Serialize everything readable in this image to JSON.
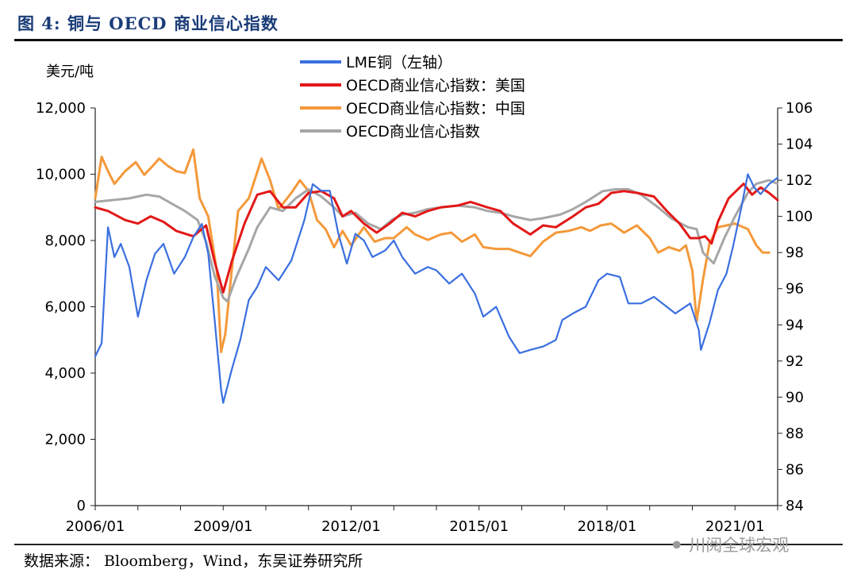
{
  "figure": {
    "title": "图 4:    铜与 OECD 商业信心指数",
    "source": "数据来源： Bloomberg，Wind，东吴证券研究所",
    "watermark": "川阅全球宏观"
  },
  "chart_data": {
    "type": "line",
    "title": "铜与 OECD 商业信心指数",
    "ylabel_left": "美元/吨",
    "x_tick_labels": [
      "2006/01",
      "2009/01",
      "2012/01",
      "2015/01",
      "2018/01",
      "2021/01"
    ],
    "x_range": [
      2006.0,
      2022.0
    ],
    "y_left": {
      "range": [
        0,
        12000
      ],
      "ticks": [
        0,
        2000,
        4000,
        6000,
        8000,
        10000,
        12000
      ],
      "tick_labels": [
        "0",
        "2,000",
        "4,000",
        "6,000",
        "8,000",
        "10,000",
        "12,000"
      ]
    },
    "y_right": {
      "range": [
        84,
        106
      ],
      "ticks": [
        84,
        86,
        88,
        90,
        92,
        94,
        96,
        98,
        100,
        102,
        104,
        106
      ],
      "tick_labels": [
        "84",
        "86",
        "88",
        "90",
        "92",
        "94",
        "96",
        "98",
        "100",
        "102",
        "104",
        "106"
      ]
    },
    "legend_position": "top-center",
    "series": [
      {
        "name": "LME铜（左轴）",
        "axis": "left",
        "color": "#3a6fe0",
        "points": [
          [
            2006.0,
            4500
          ],
          [
            2006.15,
            4900
          ],
          [
            2006.3,
            8400
          ],
          [
            2006.45,
            7500
          ],
          [
            2006.6,
            7900
          ],
          [
            2006.8,
            7200
          ],
          [
            2007.0,
            5700
          ],
          [
            2007.2,
            6800
          ],
          [
            2007.4,
            7600
          ],
          [
            2007.6,
            7900
          ],
          [
            2007.85,
            7000
          ],
          [
            2008.1,
            7500
          ],
          [
            2008.3,
            8100
          ],
          [
            2008.5,
            8500
          ],
          [
            2008.65,
            7600
          ],
          [
            2008.8,
            5600
          ],
          [
            2008.95,
            3500
          ],
          [
            2009.0,
            3100
          ],
          [
            2009.2,
            4100
          ],
          [
            2009.4,
            5000
          ],
          [
            2009.6,
            6200
          ],
          [
            2009.8,
            6600
          ],
          [
            2010.0,
            7200
          ],
          [
            2010.3,
            6800
          ],
          [
            2010.6,
            7400
          ],
          [
            2010.9,
            8600
          ],
          [
            2011.1,
            9700
          ],
          [
            2011.3,
            9500
          ],
          [
            2011.5,
            9500
          ],
          [
            2011.7,
            8200
          ],
          [
            2011.9,
            7300
          ],
          [
            2012.1,
            8200
          ],
          [
            2012.3,
            8000
          ],
          [
            2012.5,
            7500
          ],
          [
            2012.8,
            7700
          ],
          [
            2013.0,
            8000
          ],
          [
            2013.2,
            7500
          ],
          [
            2013.5,
            7000
          ],
          [
            2013.8,
            7200
          ],
          [
            2014.0,
            7100
          ],
          [
            2014.3,
            6700
          ],
          [
            2014.6,
            7000
          ],
          [
            2014.9,
            6400
          ],
          [
            2015.1,
            5700
          ],
          [
            2015.4,
            6000
          ],
          [
            2015.7,
            5100
          ],
          [
            2015.95,
            4600
          ],
          [
            2016.2,
            4700
          ],
          [
            2016.5,
            4800
          ],
          [
            2016.8,
            5000
          ],
          [
            2016.95,
            5600
          ],
          [
            2017.2,
            5800
          ],
          [
            2017.5,
            6000
          ],
          [
            2017.8,
            6800
          ],
          [
            2018.0,
            7000
          ],
          [
            2018.3,
            6900
          ],
          [
            2018.5,
            6100
          ],
          [
            2018.8,
            6100
          ],
          [
            2019.1,
            6300
          ],
          [
            2019.4,
            6000
          ],
          [
            2019.6,
            5800
          ],
          [
            2019.95,
            6100
          ],
          [
            2020.15,
            5300
          ],
          [
            2020.2,
            4700
          ],
          [
            2020.4,
            5500
          ],
          [
            2020.6,
            6500
          ],
          [
            2020.8,
            7000
          ],
          [
            2020.95,
            7800
          ],
          [
            2021.15,
            9000
          ],
          [
            2021.3,
            10000
          ],
          [
            2021.45,
            9600
          ],
          [
            2021.6,
            9400
          ],
          [
            2021.8,
            9700
          ],
          [
            2022.0,
            9900
          ]
        ]
      },
      {
        "name": "OECD商业信心指数：美国",
        "axis": "right",
        "color": "#e31818",
        "points": [
          [
            2006.0,
            100.5
          ],
          [
            2006.3,
            100.3
          ],
          [
            2006.7,
            99.8
          ],
          [
            2007.0,
            99.6
          ],
          [
            2007.3,
            100.0
          ],
          [
            2007.6,
            99.7
          ],
          [
            2007.9,
            99.2
          ],
          [
            2008.3,
            98.9
          ],
          [
            2008.6,
            99.5
          ],
          [
            2008.8,
            97.5
          ],
          [
            2009.0,
            95.8
          ],
          [
            2009.2,
            97.5
          ],
          [
            2009.5,
            99.6
          ],
          [
            2009.8,
            101.2
          ],
          [
            2010.1,
            101.4
          ],
          [
            2010.4,
            100.5
          ],
          [
            2010.7,
            100.5
          ],
          [
            2011.0,
            101.3
          ],
          [
            2011.3,
            101.4
          ],
          [
            2011.6,
            101.0
          ],
          [
            2011.8,
            100.0
          ],
          [
            2012.0,
            100.3
          ],
          [
            2012.3,
            99.6
          ],
          [
            2012.6,
            99.1
          ],
          [
            2012.9,
            99.6
          ],
          [
            2013.2,
            100.2
          ],
          [
            2013.5,
            100.0
          ],
          [
            2013.8,
            100.3
          ],
          [
            2014.1,
            100.5
          ],
          [
            2014.5,
            100.6
          ],
          [
            2014.8,
            100.8
          ],
          [
            2015.2,
            100.5
          ],
          [
            2015.5,
            100.3
          ],
          [
            2015.8,
            99.6
          ],
          [
            2016.2,
            99.0
          ],
          [
            2016.5,
            99.5
          ],
          [
            2016.8,
            99.4
          ],
          [
            2017.2,
            100.0
          ],
          [
            2017.5,
            100.5
          ],
          [
            2017.8,
            100.7
          ],
          [
            2018.1,
            101.3
          ],
          [
            2018.4,
            101.4
          ],
          [
            2018.7,
            101.3
          ],
          [
            2019.1,
            101.1
          ],
          [
            2019.4,
            100.3
          ],
          [
            2019.7,
            99.6
          ],
          [
            2019.95,
            98.8
          ],
          [
            2020.15,
            98.8
          ],
          [
            2020.3,
            98.9
          ],
          [
            2020.45,
            98.5
          ],
          [
            2020.6,
            99.7
          ],
          [
            2020.85,
            101.0
          ],
          [
            2021.2,
            101.8
          ],
          [
            2021.4,
            101.2
          ],
          [
            2021.6,
            101.6
          ],
          [
            2021.8,
            101.3
          ],
          [
            2022.0,
            100.9
          ]
        ]
      },
      {
        "name": "OECD商业信心指数：中国",
        "axis": "right",
        "color": "#f4993a",
        "points": [
          [
            2006.0,
            101.0
          ],
          [
            2006.15,
            103.3
          ],
          [
            2006.3,
            102.5
          ],
          [
            2006.45,
            101.8
          ],
          [
            2006.7,
            102.5
          ],
          [
            2006.95,
            103.0
          ],
          [
            2007.15,
            102.3
          ],
          [
            2007.35,
            102.8
          ],
          [
            2007.5,
            103.2
          ],
          [
            2007.7,
            102.8
          ],
          [
            2007.9,
            102.5
          ],
          [
            2008.1,
            102.4
          ],
          [
            2008.3,
            103.7
          ],
          [
            2008.45,
            101.0
          ],
          [
            2008.65,
            100.0
          ],
          [
            2008.85,
            97.0
          ],
          [
            2008.95,
            92.5
          ],
          [
            2009.05,
            93.5
          ],
          [
            2009.2,
            97.0
          ],
          [
            2009.35,
            100.3
          ],
          [
            2009.6,
            101.0
          ],
          [
            2009.9,
            103.2
          ],
          [
            2010.1,
            102.0
          ],
          [
            2010.3,
            100.4
          ],
          [
            2010.6,
            101.3
          ],
          [
            2010.8,
            102.0
          ],
          [
            2011.0,
            101.4
          ],
          [
            2011.2,
            99.8
          ],
          [
            2011.4,
            99.3
          ],
          [
            2011.6,
            98.3
          ],
          [
            2011.8,
            99.2
          ],
          [
            2012.0,
            98.4
          ],
          [
            2012.3,
            99.4
          ],
          [
            2012.55,
            98.6
          ],
          [
            2012.8,
            98.8
          ],
          [
            2013.0,
            98.8
          ],
          [
            2013.3,
            99.4
          ],
          [
            2013.5,
            99.0
          ],
          [
            2013.8,
            98.7
          ],
          [
            2014.1,
            99.0
          ],
          [
            2014.35,
            99.1
          ],
          [
            2014.6,
            98.6
          ],
          [
            2014.9,
            99.0
          ],
          [
            2015.1,
            98.3
          ],
          [
            2015.4,
            98.2
          ],
          [
            2015.7,
            98.2
          ],
          [
            2015.95,
            98.0
          ],
          [
            2016.2,
            97.8
          ],
          [
            2016.5,
            98.6
          ],
          [
            2016.8,
            99.1
          ],
          [
            2017.1,
            99.2
          ],
          [
            2017.4,
            99.4
          ],
          [
            2017.6,
            99.2
          ],
          [
            2017.85,
            99.5
          ],
          [
            2018.1,
            99.6
          ],
          [
            2018.4,
            99.1
          ],
          [
            2018.7,
            99.5
          ],
          [
            2019.0,
            98.8
          ],
          [
            2019.2,
            98.0
          ],
          [
            2019.45,
            98.3
          ],
          [
            2019.7,
            98.1
          ],
          [
            2019.85,
            98.4
          ],
          [
            2020.0,
            97.0
          ],
          [
            2020.1,
            94.2
          ],
          [
            2020.25,
            96.5
          ],
          [
            2020.4,
            98.5
          ],
          [
            2020.6,
            99.4
          ],
          [
            2020.8,
            99.5
          ],
          [
            2021.0,
            99.6
          ],
          [
            2021.3,
            99.3
          ],
          [
            2021.5,
            98.4
          ],
          [
            2021.65,
            98.0
          ],
          [
            2021.8,
            98.0
          ]
        ]
      },
      {
        "name": "OECD商业信心指数",
        "axis": "right",
        "color": "#a6a6a6",
        "points": [
          [
            2006.0,
            100.8
          ],
          [
            2006.4,
            100.9
          ],
          [
            2006.8,
            101.0
          ],
          [
            2007.2,
            101.2
          ],
          [
            2007.5,
            101.1
          ],
          [
            2007.8,
            100.7
          ],
          [
            2008.1,
            100.3
          ],
          [
            2008.4,
            99.8
          ],
          [
            2008.6,
            98.6
          ],
          [
            2008.8,
            96.7
          ],
          [
            2009.0,
            95.5
          ],
          [
            2009.1,
            95.3
          ],
          [
            2009.3,
            96.6
          ],
          [
            2009.6,
            98.2
          ],
          [
            2009.8,
            99.4
          ],
          [
            2010.1,
            100.5
          ],
          [
            2010.4,
            100.3
          ],
          [
            2010.7,
            101.0
          ],
          [
            2011.0,
            101.5
          ],
          [
            2011.3,
            101.1
          ],
          [
            2011.6,
            100.5
          ],
          [
            2011.8,
            100.0
          ],
          [
            2012.1,
            100.2
          ],
          [
            2012.4,
            99.6
          ],
          [
            2012.7,
            99.3
          ],
          [
            2012.95,
            99.8
          ],
          [
            2013.2,
            100.1
          ],
          [
            2013.5,
            100.2
          ],
          [
            2013.8,
            100.4
          ],
          [
            2014.1,
            100.5
          ],
          [
            2014.5,
            100.6
          ],
          [
            2014.9,
            100.5
          ],
          [
            2015.2,
            100.3
          ],
          [
            2015.5,
            100.2
          ],
          [
            2015.8,
            100.0
          ],
          [
            2016.2,
            99.8
          ],
          [
            2016.5,
            99.9
          ],
          [
            2016.9,
            100.1
          ],
          [
            2017.2,
            100.4
          ],
          [
            2017.5,
            100.8
          ],
          [
            2017.9,
            101.4
          ],
          [
            2018.2,
            101.5
          ],
          [
            2018.5,
            101.5
          ],
          [
            2018.8,
            101.2
          ],
          [
            2019.2,
            100.5
          ],
          [
            2019.5,
            99.9
          ],
          [
            2019.9,
            99.4
          ],
          [
            2020.1,
            99.3
          ],
          [
            2020.25,
            98.0
          ],
          [
            2020.5,
            97.4
          ],
          [
            2020.75,
            98.8
          ],
          [
            2021.0,
            100.0
          ],
          [
            2021.3,
            101.3
          ],
          [
            2021.5,
            101.8
          ],
          [
            2021.8,
            102.0
          ],
          [
            2022.0,
            101.8
          ]
        ]
      }
    ]
  }
}
